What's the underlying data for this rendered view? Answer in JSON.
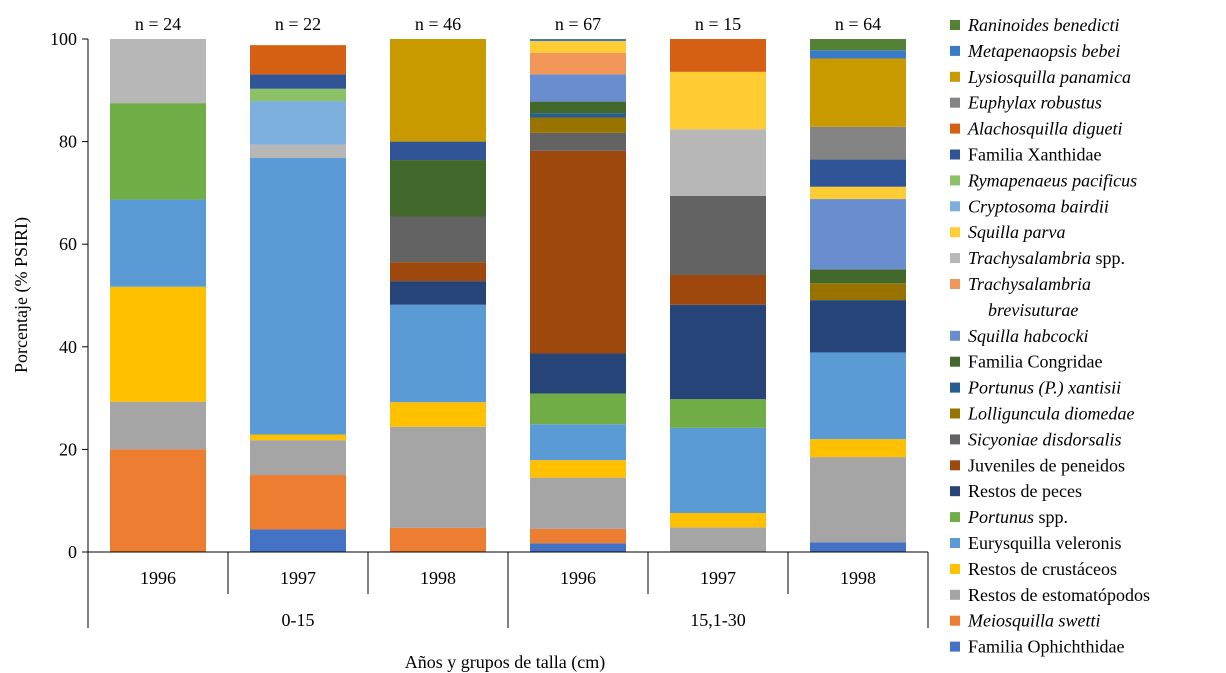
{
  "chart_data": {
    "type": "bar",
    "stacked": true,
    "ylabel": "Porcentaje (% PSIRI)",
    "xlabel": "Años y grupos de talla (cm)",
    "ylim": [
      0,
      100
    ],
    "yticks": [
      "0",
      "20",
      "40",
      "60",
      "80",
      "100"
    ],
    "categories": [
      "1996",
      "1997",
      "1998",
      "1996",
      "1997",
      "1998"
    ],
    "groups": [
      {
        "label": "0-15",
        "categories": [
          0,
          1,
          2
        ]
      },
      {
        "label": "15,1-30",
        "categories": [
          3,
          4,
          5
        ]
      }
    ],
    "sample_sizes": [
      "n = 24",
      "n = 22",
      "n = 46",
      "n = 67",
      "n = 15",
      "n = 64"
    ],
    "legend_position": "right",
    "series": [
      {
        "name": "Familia Ophichthidae",
        "italic": false,
        "color": "#4472C4",
        "values": [
          0,
          4.4,
          0,
          1.7,
          0,
          1.9
        ]
      },
      {
        "name": "Meiosquilla swetti",
        "italic": true,
        "color": "#ED7D31",
        "values": [
          20.0,
          10.6,
          4.7,
          2.8,
          0,
          0
        ]
      },
      {
        "name": "Restos de estomatópodos",
        "italic": false,
        "color": "#A5A5A5",
        "values": [
          9.3,
          6.8,
          19.7,
          10.0,
          4.8,
          16.6
        ]
      },
      {
        "name": "Restos de crustáceos",
        "italic": false,
        "color": "#FFC000",
        "values": [
          22.4,
          1.1,
          4.8,
          3.4,
          2.8,
          3.5
        ]
      },
      {
        "name": "Eurysquilla veleronis",
        "italic": false,
        "color": "#5B9BD5",
        "values": [
          17.0,
          53.9,
          19.0,
          7.0,
          16.6,
          16.9
        ]
      },
      {
        "name": "Portunus spp.",
        "italic": true,
        "color": "#70AD47",
        "values": [
          18.8,
          0,
          0,
          6.0,
          5.6,
          0
        ]
      },
      {
        "name": "Restos de peces",
        "italic": false,
        "color": "#264478",
        "values": [
          0,
          0,
          4.6,
          7.8,
          18.4,
          10.2
        ]
      },
      {
        "name": "Juveniles de peneidos",
        "italic": false,
        "color": "#9E480E",
        "values": [
          0,
          0,
          3.7,
          39.5,
          5.8,
          0
        ]
      },
      {
        "name": "Sicyoniae disdorsalis",
        "italic": true,
        "color": "#636363",
        "values": [
          0,
          0,
          8.9,
          3.5,
          15.4,
          0
        ]
      },
      {
        "name": "Lolliguncula diomedae",
        "italic": true,
        "color": "#997300",
        "values": [
          0,
          0,
          0,
          3.0,
          0,
          3.3
        ]
      },
      {
        "name": "Portunus (P.) xantisii",
        "italic": true,
        "color": "#255E91",
        "values": [
          0,
          0,
          0,
          0.8,
          0,
          0
        ]
      },
      {
        "name": "Familia Congridae",
        "italic": false,
        "color": "#43682B",
        "values": [
          0,
          0,
          11.0,
          2.3,
          0,
          2.7
        ]
      },
      {
        "name": "Squilla habcocki",
        "italic": true,
        "color": "#698ED0",
        "values": [
          0,
          0,
          0,
          5.3,
          0,
          13.7
        ]
      },
      {
        "name": "Trachysalambria brevisuturae",
        "italic": true,
        "color": "#F1975A",
        "values": [
          0,
          0,
          0,
          4.2,
          0,
          0
        ]
      },
      {
        "name": "Trachysalambria spp.",
        "italic": true,
        "color": "#B7B7B7",
        "values": [
          12.5,
          2.6,
          0,
          0,
          13.0,
          0
        ]
      },
      {
        "name": "Squilla parva",
        "italic": true,
        "color": "#FFCD33",
        "values": [
          0,
          0,
          0,
          2.3,
          11.2,
          2.4
        ]
      },
      {
        "name": "Cryptosoma bairdii",
        "italic": true,
        "color": "#7CAFDD",
        "values": [
          0,
          8.5,
          0,
          0,
          0,
          0
        ]
      },
      {
        "name": "Rymapenaeus pacificus",
        "italic": true,
        "color": "#8CC168",
        "values": [
          0,
          2.4,
          0,
          0,
          0,
          0
        ]
      },
      {
        "name": "Familia Xanthidae",
        "italic": false,
        "color": "#2F5597",
        "values": [
          0,
          2.8,
          3.6,
          0,
          0,
          5.3
        ]
      },
      {
        "name": "Alachosquilla digueti",
        "italic": true,
        "color": "#D55F13",
        "values": [
          0,
          5.7,
          0,
          0,
          6.4,
          0
        ]
      },
      {
        "name": "Euphylax robustus",
        "italic": true,
        "color": "#848484",
        "values": [
          0,
          0,
          0,
          0,
          0,
          6.4
        ]
      },
      {
        "name": "Lysiosquilla panamica",
        "italic": true,
        "color": "#C99A00",
        "values": [
          0,
          0,
          20.0,
          0,
          0,
          13.3
        ]
      },
      {
        "name": "Metapenaopsis bebei",
        "italic": true,
        "color": "#3A7BC8",
        "values": [
          0,
          0,
          0,
          0.3,
          0,
          1.6
        ]
      },
      {
        "name": "Raninoides benedicti",
        "italic": true,
        "color": "#548235",
        "values": [
          0,
          0,
          0,
          0.1,
          0,
          2.2
        ]
      }
    ],
    "legend": [
      {
        "series": 23,
        "lines": [
          "Raninoides benedicti"
        ]
      },
      {
        "series": 22,
        "lines": [
          "Metapenaopsis bebei"
        ]
      },
      {
        "series": 21,
        "lines": [
          "Lysiosquilla panamica"
        ]
      },
      {
        "series": 20,
        "lines": [
          "Euphylax robustus"
        ]
      },
      {
        "series": 19,
        "lines": [
          "Alachosquilla digueti"
        ]
      },
      {
        "series": 18,
        "lines": [
          "Familia Xanthidae"
        ]
      },
      {
        "series": 17,
        "lines": [
          "Rymapenaeus pacificus"
        ]
      },
      {
        "series": 16,
        "lines": [
          "Cryptosoma bairdii"
        ]
      },
      {
        "series": 15,
        "lines": [
          "Squilla parva"
        ]
      },
      {
        "series": 14,
        "lines": [
          "Trachysalambria spp."
        ],
        "italic_part": "Trachysalambria",
        "rest": " spp."
      },
      {
        "series": 13,
        "lines": [
          "Trachysalambria",
          "brevisuturae"
        ]
      },
      {
        "series": 12,
        "lines": [
          "Squilla habcocki"
        ]
      },
      {
        "series": 11,
        "lines": [
          "Familia Congridae"
        ]
      },
      {
        "series": 10,
        "lines": [
          "Portunus (P.) xantisii"
        ]
      },
      {
        "series": 9,
        "lines": [
          "Lolliguncula diomedae"
        ]
      },
      {
        "series": 8,
        "lines": [
          "Sicyoniae disdorsalis"
        ]
      },
      {
        "series": 7,
        "lines": [
          "Juveniles de peneidos"
        ]
      },
      {
        "series": 6,
        "lines": [
          "Restos de peces"
        ]
      },
      {
        "series": 5,
        "lines": [
          "Portunus spp."
        ],
        "italic_part": "Portunus",
        "rest": " spp."
      },
      {
        "series": 4,
        "lines": [
          "Eurysquilla veleronis"
        ]
      },
      {
        "series": 3,
        "lines": [
          "Restos de crustáceos"
        ]
      },
      {
        "series": 2,
        "lines": [
          "Restos de estomatópodos"
        ]
      },
      {
        "series": 1,
        "lines": [
          "Meiosquilla swetti"
        ]
      },
      {
        "series": 0,
        "lines": [
          "Familia Ophichthidae"
        ]
      }
    ]
  }
}
